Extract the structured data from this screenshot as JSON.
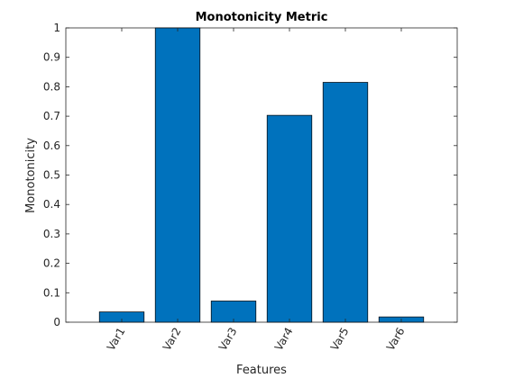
{
  "chart_data": {
    "type": "bar",
    "title": "Monotonicity Metric",
    "xlabel": "Features",
    "ylabel": "Monotonicity",
    "categories": [
      "Var1",
      "Var2",
      "Var3",
      "Var4",
      "Var5",
      "Var6"
    ],
    "values": [
      0.035,
      1.0,
      0.072,
      0.703,
      0.815,
      0.018
    ],
    "ylim": [
      0,
      1
    ],
    "yticks": [
      "0",
      "0.1",
      "0.2",
      "0.3",
      "0.4",
      "0.5",
      "0.6",
      "0.7",
      "0.8",
      "0.9",
      "1"
    ],
    "grid": false,
    "legend": "none",
    "bar_color": "#0072BD",
    "edge_color": "#000000",
    "axes_color": "#262626"
  }
}
